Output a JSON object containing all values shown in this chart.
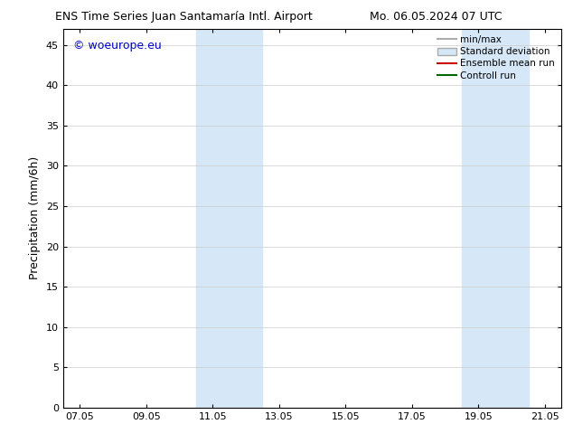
{
  "title": "ENS Time Series Juan Santamaría Intl. Airport",
  "title_right": "Mo. 06.05.2024 07 UTC",
  "ylabel": "Precipitation (mm/6h)",
  "watermark": "© woeurope.eu",
  "x_ticks": [
    "07.05",
    "09.05",
    "11.05",
    "13.05",
    "15.05",
    "17.05",
    "19.05",
    "21.05"
  ],
  "x_tick_positions": [
    0,
    2,
    4,
    6,
    8,
    10,
    12,
    14
  ],
  "xlim": [
    -0.5,
    14.5
  ],
  "ylim": [
    0,
    47
  ],
  "y_ticks": [
    0,
    5,
    10,
    15,
    20,
    25,
    30,
    35,
    40,
    45
  ],
  "shaded_regions": [
    {
      "xmin": 3.5,
      "xmax": 5.5,
      "color": "#d6e8f7"
    },
    {
      "xmin": 11.5,
      "xmax": 13.5,
      "color": "#d6e8f7"
    }
  ],
  "legend_entries": [
    {
      "label": "min/max",
      "color": "#aaaaaa",
      "linewidth": 1.5,
      "type": "line"
    },
    {
      "label": "Standard deviation",
      "color": "#d6e8f7",
      "edgecolor": "#aaaaaa",
      "linewidth": 1,
      "type": "patch"
    },
    {
      "label": "Ensemble mean run",
      "color": "#cc0000",
      "linewidth": 1.5,
      "type": "line"
    },
    {
      "label": "Controll run",
      "color": "#006600",
      "linewidth": 1.5,
      "type": "line"
    }
  ],
  "background_color": "#ffffff",
  "grid_color": "#cccccc",
  "title_fontsize": 9,
  "tick_fontsize": 8,
  "ylabel_fontsize": 9,
  "watermark_color": "#0000cc",
  "watermark_fontsize": 9,
  "legend_fontsize": 7.5
}
